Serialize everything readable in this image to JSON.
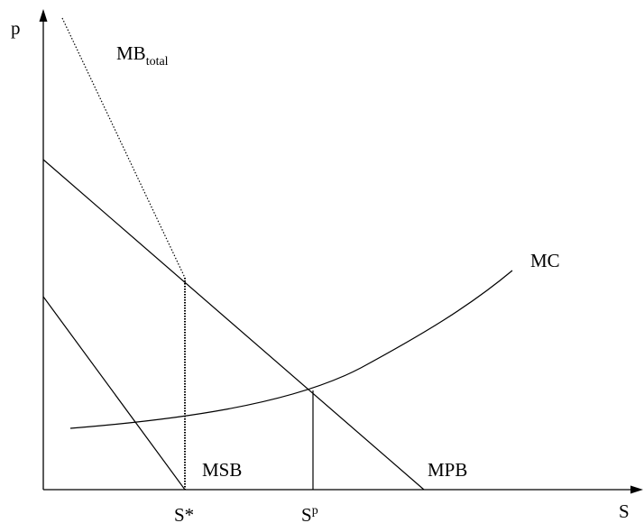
{
  "diagram": {
    "axis_labels": {
      "y": "p",
      "x": "S"
    },
    "curve_labels": {
      "mb_total_main": "MB",
      "mb_total_sub": "total",
      "mc": "MC",
      "msb": "MSB",
      "mpb": "MPB"
    },
    "tick_labels": {
      "s_star": "S*",
      "s_p_main": "S",
      "s_p_sup": "p"
    },
    "colors": {
      "line": "#000000",
      "background": "#ffffff"
    }
  }
}
